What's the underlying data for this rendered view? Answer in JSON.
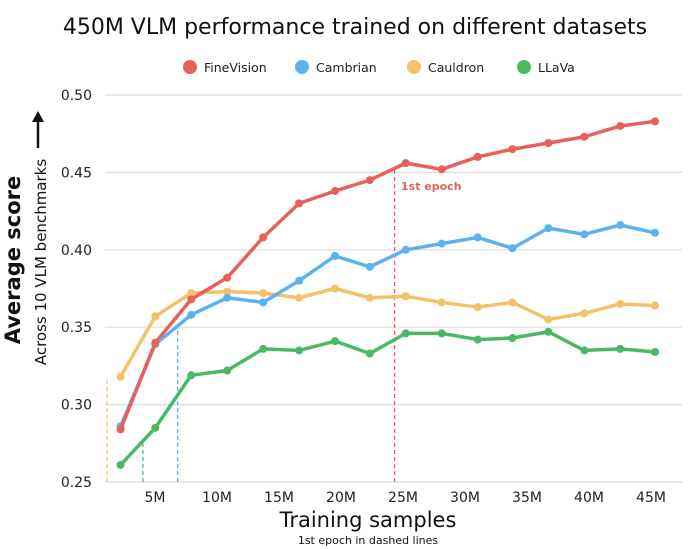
{
  "chart_data": {
    "type": "line",
    "title": "450M VLM performance trained on different datasets",
    "xlabel": "Training samples",
    "xsublabel": "1st epoch in dashed lines",
    "ylabel": "Average score",
    "ysublabel": "Across 10 VLM benchmarks",
    "ylim": [
      0.25,
      0.5
    ],
    "xlim": [
      0,
      47
    ],
    "yticks": [
      "0.25",
      "0.30",
      "0.35",
      "0.40",
      "0.45",
      "0.50"
    ],
    "xticks": [
      "5M",
      "10M",
      "15M",
      "20M",
      "25M",
      "30M",
      "35M",
      "40M",
      "45M"
    ],
    "grid": "horizontal",
    "legend": "top",
    "annotation": "1st epoch",
    "x": [
      1.9,
      4.7,
      7.6,
      10.5,
      13.4,
      16.3,
      19.2,
      22.0,
      24.9,
      27.8,
      30.7,
      33.5,
      36.4,
      39.3,
      42.2,
      45.0
    ],
    "series": [
      {
        "name": "FineVision",
        "color": "#e8605a",
        "epoch": 24.0,
        "values": [
          0.284,
          0.34,
          0.368,
          0.382,
          0.408,
          0.43,
          0.438,
          0.445,
          0.456,
          0.452,
          0.46,
          0.465,
          0.469,
          0.473,
          0.48,
          0.483
        ]
      },
      {
        "name": "Cambrian",
        "color": "#5ab3ef",
        "epoch": 6.5,
        "values": [
          0.286,
          0.339,
          0.358,
          0.369,
          0.366,
          0.38,
          0.396,
          0.389,
          0.4,
          0.404,
          0.408,
          0.401,
          0.414,
          0.41,
          0.416,
          0.411
        ]
      },
      {
        "name": "Cauldron",
        "color": "#f4c16a",
        "epoch": 0.8,
        "values": [
          0.318,
          0.357,
          0.372,
          0.373,
          0.372,
          0.369,
          0.375,
          0.369,
          0.37,
          0.366,
          0.363,
          0.366,
          0.355,
          0.359,
          0.365,
          0.364
        ]
      },
      {
        "name": "LLaVa",
        "color": "#4cb865",
        "epoch": 3.7,
        "values": [
          0.261,
          0.285,
          0.319,
          0.322,
          0.336,
          0.335,
          0.341,
          0.333,
          0.346,
          0.346,
          0.342,
          0.343,
          0.347,
          0.335,
          0.336,
          0.334
        ]
      }
    ]
  }
}
